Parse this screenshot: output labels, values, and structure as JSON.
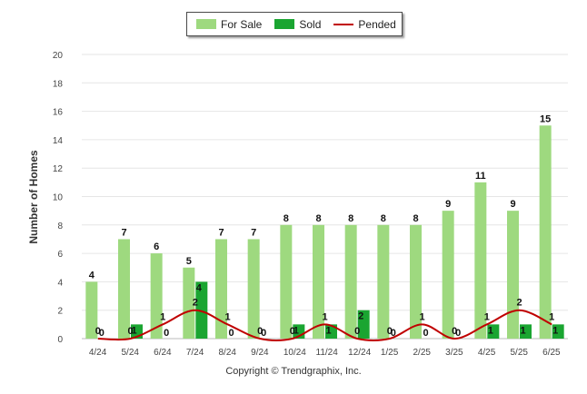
{
  "chart_data": {
    "type": "bar",
    "ylabel": "Number of Homes",
    "xlabel": "",
    "ylim": [
      0,
      20
    ],
    "yticks": [
      0,
      2,
      4,
      6,
      8,
      10,
      12,
      14,
      16,
      18,
      20
    ],
    "grid": true,
    "legend_position": "top-center",
    "categories": [
      "4/24",
      "5/24",
      "6/24",
      "7/24",
      "8/24",
      "9/24",
      "10/24",
      "11/24",
      "12/24",
      "1/25",
      "2/25",
      "3/25",
      "4/25",
      "5/25",
      "6/25"
    ],
    "series": [
      {
        "name": "For Sale",
        "kind": "bar",
        "color": "#9ed97f",
        "values": [
          4,
          7,
          6,
          5,
          7,
          7,
          8,
          8,
          8,
          8,
          8,
          9,
          11,
          9,
          15
        ]
      },
      {
        "name": "Sold",
        "kind": "bar",
        "color": "#1aa531",
        "values": [
          0,
          1,
          0,
          4,
          0,
          0,
          1,
          1,
          2,
          0,
          0,
          0,
          1,
          1,
          1
        ]
      },
      {
        "name": "Pended",
        "kind": "line",
        "color": "#c00000",
        "values": [
          0,
          0,
          1,
          2,
          1,
          0,
          0,
          1,
          0,
          0,
          1,
          0,
          1,
          2,
          1
        ]
      }
    ],
    "footer": "Copyright © Trendgraphix, Inc."
  }
}
